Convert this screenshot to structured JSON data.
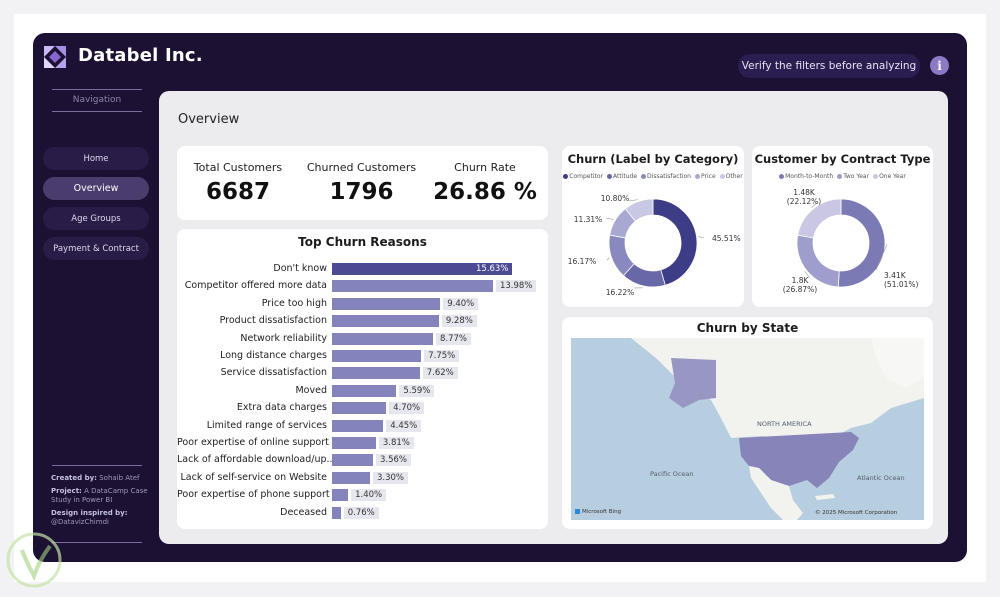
{
  "header": {
    "brand": "Databel Inc.",
    "verify_text": "Verify the filters before analyzing",
    "info_label": "i"
  },
  "sidebar": {
    "title": "Navigation",
    "items": [
      {
        "label": "Home"
      },
      {
        "label": "Overview"
      },
      {
        "label": "Age Groups"
      },
      {
        "label": "Payment & Contract"
      }
    ],
    "credits": {
      "created_by_label": "Created by:",
      "created_by": "Sohaib Atef",
      "project_label": "Project:",
      "project": "A DataCamp Case Study in Power BI",
      "design_label": "Design inspired by:",
      "design": "@DatavizChimdi"
    }
  },
  "main": {
    "title": "Overview",
    "kpis": [
      {
        "label": "Total Customers",
        "value": "6687"
      },
      {
        "label": "Churned Customers",
        "value": "1796"
      },
      {
        "label": "Churn Rate",
        "value": "26.86 %"
      }
    ]
  },
  "colors": {
    "frame": "#1c1033",
    "bar": "#8583bc",
    "bar_top": "#4b4a92",
    "accent": "#8e79c4"
  },
  "chart_data": [
    {
      "type": "bar",
      "title": "Top Churn Reasons",
      "orientation": "horizontal",
      "categories": [
        "Don't know",
        "Competitor offered more data",
        "Price too high",
        "Product dissatisfaction",
        "Network reliability",
        "Long distance charges",
        "Service dissatisfaction",
        "Moved",
        "Extra data charges",
        "Limited range of services",
        "Poor expertise of online support",
        "Lack of affordable download/up...",
        "Lack of self-service on Website",
        "Poor expertise of phone support",
        "Deceased"
      ],
      "values": [
        15.63,
        13.98,
        9.4,
        9.28,
        8.77,
        7.75,
        7.62,
        5.59,
        4.7,
        4.45,
        3.81,
        3.56,
        3.3,
        1.4,
        0.76
      ],
      "labels": [
        "15.63%",
        "13.98%",
        "9.40%",
        "9.28%",
        "8.77%",
        "7.75%",
        "7.62%",
        "5.59%",
        "4.70%",
        "4.45%",
        "3.81%",
        "3.56%",
        "3.30%",
        "1.40%",
        "0.76%"
      ]
    },
    {
      "type": "pie",
      "title": "Churn (Label by Category)",
      "legend_position": "top",
      "categories": [
        "Competitor",
        "Attitude",
        "Dissatisfaction",
        "Price",
        "Other"
      ],
      "values": [
        45.51,
        16.22,
        16.17,
        11.31,
        10.8
      ],
      "labels": [
        "45.51%",
        "16.22%",
        "16.17%",
        "11.31%",
        "10.80%"
      ],
      "colors": [
        "#3d3c86",
        "#6867a8",
        "#8a89bf",
        "#a9a8d2",
        "#c9c8e4"
      ]
    },
    {
      "type": "pie",
      "title": "Customer by Contract Type",
      "legend_position": "top",
      "categories": [
        "Month-to-Month",
        "Two Year",
        "One Year"
      ],
      "values": [
        51.01,
        26.87,
        22.12
      ],
      "labels": [
        "3.41K\n(51.01%)",
        "1.8K\n(26.87%)",
        "1.48K\n(22.12%)"
      ],
      "colors": [
        "#7c7ab5",
        "#9e9dcb",
        "#c9c7e3"
      ]
    }
  ],
  "map": {
    "title": "Churn by State",
    "labels": {
      "north_america": "NORTH AMERICA",
      "pacific": "Pacific Ocean",
      "atlantic": "Atlantic Ocean",
      "bing": "Microsoft Bing",
      "copyright": "© 2025 Microsoft Corporation"
    }
  }
}
